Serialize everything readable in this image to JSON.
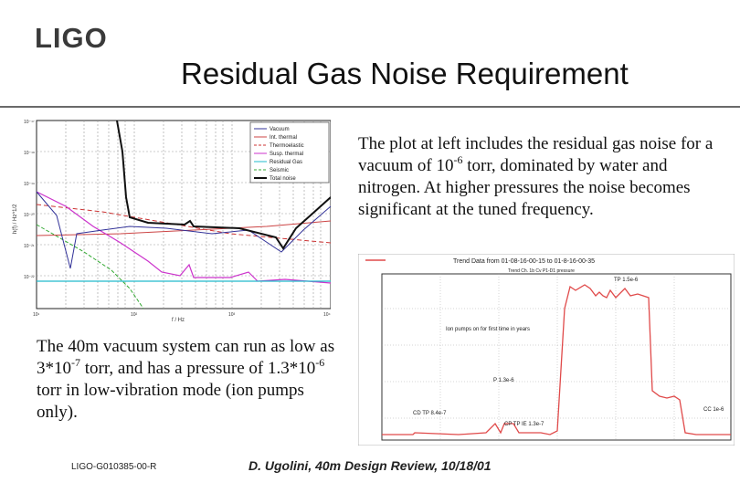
{
  "logo": "LIGO",
  "title": "Residual Gas Noise Requirement",
  "paragraph_right": {
    "pre": "The plot at left includes the residual gas noise for a vacuum of 10",
    "sup": "-6",
    "post": " torr, dominated by water and nitrogen.  At higher pressures the noise becomes significant at the tuned frequency."
  },
  "paragraph_left": {
    "a": "The 40m vacuum system can run as low as 3*10",
    "sup1": "-7",
    "b": " torr, and has a pressure of 1.3*10",
    "sup2": "-6",
    "c": " torr in low-vibration mode (ion pumps only)."
  },
  "footer": {
    "doc_id": "LIGO-G010385-00-R",
    "citation": "D. Ugolini, 40m Design Review, 10/18/01"
  },
  "noise_plot": {
    "xlabel": "f / Hz",
    "ylabel": "h(f) / Hz^1/2",
    "x_ticks": [
      "10¹",
      "10²",
      "10³",
      "10⁴"
    ],
    "y_ticks": [
      "10⁻¹⁷",
      "10⁻¹⁸",
      "10⁻¹⁹",
      "10⁻²⁰",
      "10⁻²¹",
      "10⁻²²"
    ],
    "legend": [
      "Vacuum",
      "Int. thermal",
      "Thermoelastic",
      "Susp. thermal",
      "Residual Gas",
      "Seismic",
      "Total noise"
    ]
  },
  "trend_plot": {
    "header": "Trend Data from 01-08-16-00-15 to 01-8-16-00-35",
    "subheader": "Trend Ch. 1b Cv P1-D1 pressure",
    "annotations": {
      "ion_pumps": "Ion pumps on for first time in years",
      "tp": "TP 1.5e-6",
      "p": "P 1.3e-6",
      "cd": "CD TP 8.4e-7",
      "cp": "CP TP IE 1.3e-7",
      "cc": "CC 1e-6"
    }
  },
  "colors": {
    "trend_trace": "#e04a4a",
    "text": "#111111",
    "rule": "#6a6a6a"
  }
}
